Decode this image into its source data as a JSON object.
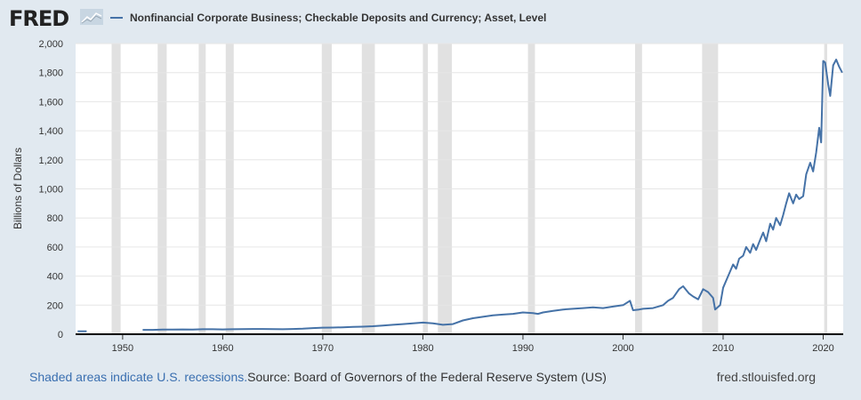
{
  "brand": {
    "logo_text": "FRED"
  },
  "footer": {
    "recession_note": "Shaded areas indicate U.S. recessions.",
    "source": "Source: Board of Governors of the Federal Reserve System (US)",
    "site": "fred.stlouisfed.org"
  },
  "colors": {
    "line": "#4572a7",
    "recession": "#e1e1e1",
    "grid": "#e6e6e6"
  },
  "chart_data": {
    "type": "line",
    "title": "",
    "xlabel": "",
    "ylabel": "Billions of Dollars",
    "xlim": [
      1945.3,
      2022.0
    ],
    "ylim": [
      0,
      2000
    ],
    "yticks": [
      0,
      200,
      400,
      600,
      800,
      1000,
      1200,
      1400,
      1600,
      1800,
      2000
    ],
    "ytick_labels": [
      "0",
      "200",
      "400",
      "600",
      "800",
      "1,000",
      "1,200",
      "1,400",
      "1,600",
      "1,800",
      "2,000"
    ],
    "xticks": [
      1950,
      1960,
      1970,
      1980,
      1990,
      2000,
      2010,
      2020
    ],
    "xtick_labels": [
      "1950",
      "1960",
      "1970",
      "1980",
      "1990",
      "2000",
      "2010",
      "2020"
    ],
    "grid": true,
    "legend_position": "top-left",
    "recessions": [
      [
        1948.9,
        1949.8
      ],
      [
        1953.5,
        1954.4
      ],
      [
        1957.6,
        1958.3
      ],
      [
        1960.3,
        1961.1
      ],
      [
        1969.9,
        1970.9
      ],
      [
        1973.9,
        1975.2
      ],
      [
        1980.0,
        1980.5
      ],
      [
        1981.5,
        1982.9
      ],
      [
        1990.5,
        1991.2
      ],
      [
        2001.2,
        2001.9
      ],
      [
        2007.9,
        2009.5
      ],
      [
        2020.1,
        2020.4
      ]
    ],
    "series": [
      {
        "name": "Nonfinancial Corporate Business; Checkable Deposits and Currency; Asset, Level",
        "x": [
          1945.5,
          1946.4,
          1952.0,
          1953.0,
          1954.0,
          1955.0,
          1956.0,
          1957.0,
          1958.0,
          1959.0,
          1960.0,
          1961.0,
          1962.0,
          1963.0,
          1964.0,
          1965.0,
          1966.0,
          1967.0,
          1968.0,
          1969.0,
          1970.0,
          1971.0,
          1972.0,
          1973.0,
          1974.0,
          1975.0,
          1976.0,
          1977.0,
          1978.0,
          1979.0,
          1980.0,
          1981.0,
          1982.0,
          1983.0,
          1984.0,
          1985.0,
          1986.0,
          1987.0,
          1988.0,
          1989.0,
          1990.0,
          1991.0,
          1991.5,
          1992.0,
          1993.0,
          1994.0,
          1995.0,
          1996.0,
          1997.0,
          1998.0,
          1999.0,
          2000.0,
          2000.7,
          2001.0,
          2001.6,
          2002.0,
          2003.0,
          2004.0,
          2004.5,
          2005.0,
          2005.6,
          2006.0,
          2006.6,
          2007.0,
          2007.5,
          2008.0,
          2008.5,
          2009.0,
          2009.2,
          2009.7,
          2010.0,
          2010.5,
          2011.0,
          2011.3,
          2011.6,
          2012.0,
          2012.3,
          2012.7,
          2013.0,
          2013.3,
          2013.7,
          2014.0,
          2014.3,
          2014.7,
          2015.0,
          2015.3,
          2015.7,
          2016.0,
          2016.3,
          2016.6,
          2017.0,
          2017.3,
          2017.6,
          2018.0,
          2018.3,
          2018.7,
          2019.0,
          2019.3,
          2019.6,
          2019.8,
          2020.0,
          2020.2,
          2020.5,
          2020.7,
          2021.0,
          2021.3,
          2021.6,
          2021.9
        ],
        "values": [
          20,
          20,
          30,
          30,
          32,
          32,
          33,
          32,
          34,
          34,
          33,
          34,
          35,
          36,
          36,
          35,
          34,
          36,
          38,
          42,
          45,
          46,
          48,
          50,
          52,
          55,
          60,
          65,
          70,
          75,
          80,
          75,
          65,
          70,
          95,
          110,
          120,
          130,
          135,
          140,
          150,
          145,
          140,
          150,
          160,
          170,
          175,
          180,
          185,
          180,
          190,
          200,
          230,
          165,
          170,
          175,
          180,
          200,
          230,
          250,
          310,
          330,
          280,
          260,
          240,
          310,
          290,
          250,
          170,
          200,
          320,
          400,
          480,
          450,
          520,
          540,
          600,
          560,
          620,
          580,
          650,
          700,
          640,
          760,
          720,
          800,
          750,
          820,
          900,
          970,
          900,
          960,
          930,
          950,
          1100,
          1180,
          1120,
          1250,
          1420,
          1320,
          1880,
          1870,
          1720,
          1640,
          1850,
          1890,
          1840,
          1800
        ]
      }
    ]
  }
}
